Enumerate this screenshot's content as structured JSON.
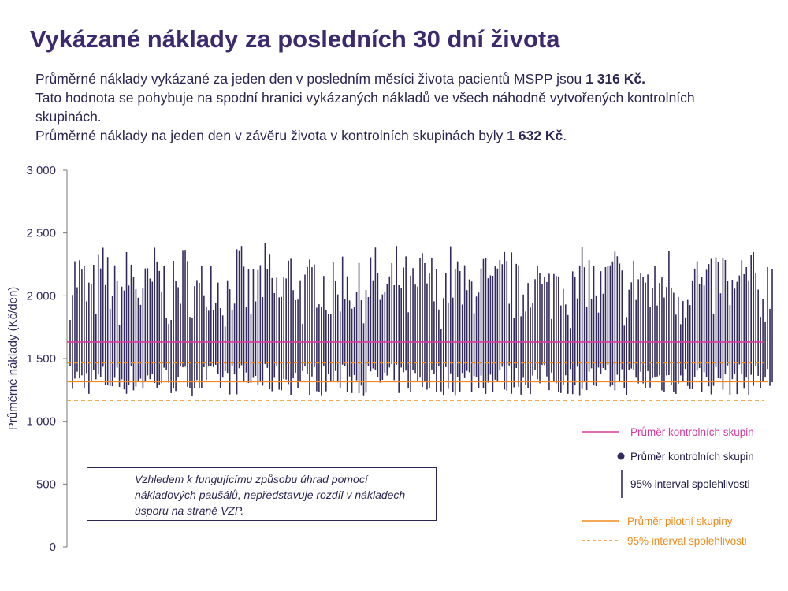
{
  "title": "Vykázané náklady za posledních 30 dní života",
  "intro": {
    "line1_prefix": "Průměrné náklady vykázané za jeden den v posledním měsíci života pacientů MSPP  jsou ",
    "line1_value": "1 316 Kč.",
    "line2": "Tato hodnota se pohybuje na spodní hranici vykázaných nákladů ve všech náhodně vytvořených kontrolních skupinách.",
    "line3_prefix": "Průměrné náklady na jeden den v závěru života v kontrolních skupinách byly ",
    "line3_value": "1 632 Kč",
    "line3_suffix": "."
  },
  "note": "Vzhledem k fungujícímu způsobu úhrad pomocí nákladových paušálů, nepředstavuje rozdíl v nákladech úsporu na straně VZP.",
  "colors": {
    "control": "#332b5e",
    "control_mean": "#d63aa0",
    "pilot": "#f08a1c",
    "axis": "#777777",
    "title": "#3c2a6e"
  },
  "chart_data": {
    "type": "error_bar",
    "ylabel": "Průměrné náklady (Kč/den)",
    "ylim": [
      0,
      3000
    ],
    "yticks": [
      0,
      500,
      1000,
      1500,
      2000,
      2500,
      3000
    ],
    "ytick_labels": [
      "0",
      "500",
      "1 000",
      "1 500",
      "2 000",
      "2 500",
      "3 000"
    ],
    "n_groups": 300,
    "control_mean_line": 1632,
    "pilot_mean": 1316,
    "pilot_ci": [
      1167,
      1465
    ],
    "interval_low_range": [
      1090,
      1550
    ],
    "interval_high_range": [
      1600,
      2430
    ],
    "legend": [
      {
        "label": "Průměr kontrolních skupin",
        "kind": "line",
        "color": "#d63aa0"
      },
      {
        "label": "Průměr kontrolních skupin",
        "kind": "dot",
        "color": "#332b5e"
      },
      {
        "label": "95% interval spolehlivosti",
        "kind": "vbar",
        "color": "#332b5e"
      },
      {
        "label": "Průměr pilotní skupiny",
        "kind": "line",
        "color": "#f08a1c"
      },
      {
        "label": "95% interval spolehlivosti",
        "kind": "dash",
        "color": "#f08a1c"
      }
    ]
  }
}
